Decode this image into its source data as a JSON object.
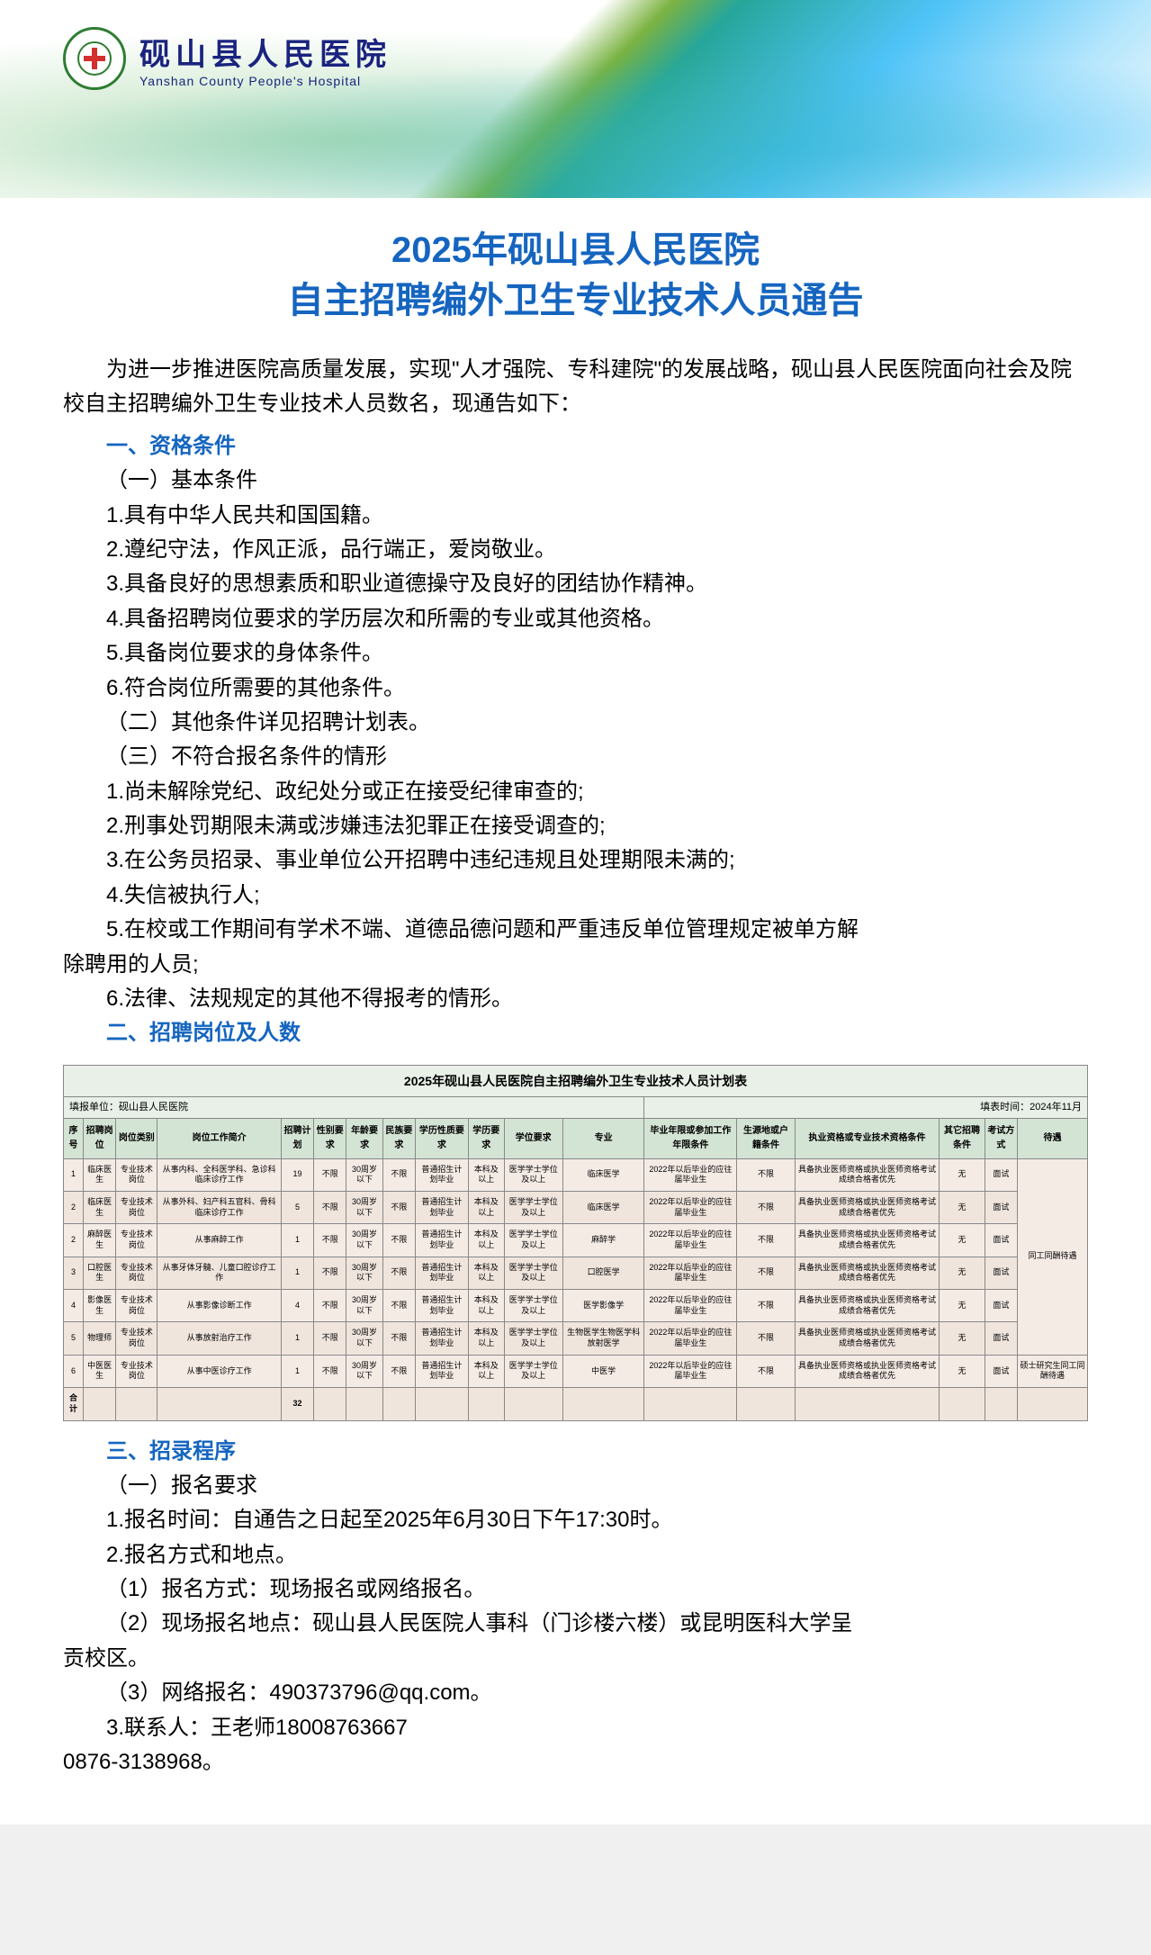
{
  "header": {
    "hospital_cn": "砚山县人民医院",
    "hospital_en": "Yanshan County People's Hospital"
  },
  "title": {
    "line1": "2025年砚山县人民医院",
    "line2": "自主招聘编外卫生专业技术人员通告"
  },
  "intro": "为进一步推进医院高质量发展，实现\"人才强院、专科建院\"的发展战略，砚山县人民医院面向社会及院校自主招聘编外卫生专业技术人员数名，现通告如下：",
  "s1": {
    "head": "一、资格条件",
    "sub1": "（一）基本条件",
    "i1": "1.具有中华人民共和国国籍。",
    "i2": "2.遵纪守法，作风正派，品行端正，爱岗敬业。",
    "i3": "3.具备良好的思想素质和职业道德操守及良好的团结协作精神。",
    "i4": "4.具备招聘岗位要求的学历层次和所需的专业或其他资格。",
    "i5": "5.具备岗位要求的身体条件。",
    "i6": "6.符合岗位所需要的其他条件。",
    "sub2": "（二）其他条件详见招聘计划表。",
    "sub3": "（三）不符合报名条件的情形",
    "d1": "1.尚未解除党纪、政纪处分或正在接受纪律审查的;",
    "d2": "2.刑事处罚期限未满或涉嫌违法犯罪正在接受调查的;",
    "d3": "3.在公务员招录、事业单位公开招聘中违纪违规且处理期限未满的;",
    "d4": "4.失信被执行人;",
    "d5a": "5.在校或工作期间有学术不端、道德品德问题和严重违反单位管理规定被单方解",
    "d5b": "除聘用的人员;",
    "d6": "6.法律、法规规定的其他不得报考的情形。"
  },
  "s2": {
    "head": "二、招聘岗位及人数"
  },
  "table": {
    "caption": "2025年砚山县人民医院自主招聘编外卫生专业技术人员计划表",
    "meta_left": "填报单位：砚山县人民医院",
    "meta_right": "填表时间：2024年11月",
    "headers": [
      "序号",
      "招聘岗位",
      "岗位类别",
      "岗位工作简介",
      "招聘计划",
      "性别要求",
      "年龄要求",
      "民族要求",
      "学历性质要求",
      "学历要求",
      "学位要求",
      "专业",
      "毕业年限或参加工作年限条件",
      "生源地或户籍条件",
      "执业资格或专业技术资格条件",
      "其它招聘条件",
      "考试方式",
      "待遇"
    ],
    "rows": [
      {
        "no": "1",
        "post": "临床医生",
        "cat": "专业技术岗位",
        "desc": "从事内科、全科医学科、急诊科临床诊疗工作",
        "plan": "19",
        "sex": "不限",
        "age": "30周岁以下",
        "eth": "不限",
        "edutype": "普通招生计划毕业",
        "edu": "本科及以上",
        "deg": "医学学士学位及以上",
        "major": "临床医学",
        "grad": "2022年以后毕业的应往届毕业生",
        "loc": "不限",
        "cert": "具备执业医师资格或执业医师资格考试成绩合格者优先",
        "other": "无",
        "exam": "面试"
      },
      {
        "no": "2",
        "post": "临床医生",
        "cat": "专业技术岗位",
        "desc": "从事外科、妇产科五官科、骨科临床诊疗工作",
        "plan": "5",
        "sex": "不限",
        "age": "30周岁以下",
        "eth": "不限",
        "edutype": "普通招生计划毕业",
        "edu": "本科及以上",
        "deg": "医学学士学位及以上",
        "major": "临床医学",
        "grad": "2022年以后毕业的应往届毕业生",
        "loc": "不限",
        "cert": "具备执业医师资格或执业医师资格考试成绩合格者优先",
        "other": "无",
        "exam": "面试"
      },
      {
        "no": "2",
        "post": "麻醉医生",
        "cat": "专业技术岗位",
        "desc": "从事麻醉工作",
        "plan": "1",
        "sex": "不限",
        "age": "30周岁以下",
        "eth": "不限",
        "edutype": "普通招生计划毕业",
        "edu": "本科及以上",
        "deg": "医学学士学位及以上",
        "major": "麻醉学",
        "grad": "2022年以后毕业的应往届毕业生",
        "loc": "不限",
        "cert": "具备执业医师资格或执业医师资格考试成绩合格者优先",
        "other": "无",
        "exam": "面试"
      },
      {
        "no": "3",
        "post": "口腔医生",
        "cat": "专业技术岗位",
        "desc": "从事牙体牙髓、儿童口腔诊疗工作",
        "plan": "1",
        "sex": "不限",
        "age": "30周岁以下",
        "eth": "不限",
        "edutype": "普通招生计划毕业",
        "edu": "本科及以上",
        "deg": "医学学士学位及以上",
        "major": "口腔医学",
        "grad": "2022年以后毕业的应往届毕业生",
        "loc": "不限",
        "cert": "具备执业医师资格或执业医师资格考试成绩合格者优先",
        "other": "无",
        "exam": "面试"
      },
      {
        "no": "4",
        "post": "影像医生",
        "cat": "专业技术岗位",
        "desc": "从事影像诊断工作",
        "plan": "4",
        "sex": "不限",
        "age": "30周岁以下",
        "eth": "不限",
        "edutype": "普通招生计划毕业",
        "edu": "本科及以上",
        "deg": "医学学士学位及以上",
        "major": "医学影像学",
        "grad": "2022年以后毕业的应往届毕业生",
        "loc": "不限",
        "cert": "具备执业医师资格或执业医师资格考试成绩合格者优先",
        "other": "无",
        "exam": "面试"
      },
      {
        "no": "5",
        "post": "物理师",
        "cat": "专业技术岗位",
        "desc": "从事放射治疗工作",
        "plan": "1",
        "sex": "不限",
        "age": "30周岁以下",
        "eth": "不限",
        "edutype": "普通招生计划毕业",
        "edu": "本科及以上",
        "deg": "医学学士学位及以上",
        "major": "生物医学生物医学科放射医学",
        "grad": "2022年以后毕业的应往届毕业生",
        "loc": "不限",
        "cert": "具备执业医师资格或执业医师资格考试成绩合格者优先",
        "other": "无",
        "exam": "面试"
      },
      {
        "no": "6",
        "post": "中医医生",
        "cat": "专业技术岗位",
        "desc": "从事中医诊疗工作",
        "plan": "1",
        "sex": "不限",
        "age": "30周岁以下",
        "eth": "不限",
        "edutype": "普通招生计划毕业",
        "edu": "本科及以上",
        "deg": "医学学士学位及以上",
        "major": "中医学",
        "grad": "2022年以后毕业的应往届毕业生",
        "loc": "不限",
        "cert": "具备执业医师资格或执业医师资格考试成绩合格者优先",
        "other": "无",
        "exam": "面试"
      }
    ],
    "treat_main": "同工同酬待遇",
    "treat_last": "硕士研究生同工同酬待遇",
    "sum_label": "合计",
    "sum_total": "32"
  },
  "s3": {
    "head": "三、招录程序",
    "sub1": "（一）报名要求",
    "i1": "1.报名时间：自通告之日起至2025年6月30日下午17:30时。",
    "i2": "2.报名方式和地点。",
    "p1": "（1）报名方式：现场报名或网络报名。",
    "p2a": "（2）现场报名地点：砚山县人民医院人事科（门诊楼六楼）或昆明医科大学呈",
    "p2b": "贡校区。",
    "p3": "（3）网络报名：490373796@qq.com。",
    "i3": "3.联系人：王老师18008763667",
    "phone": "0876-3138968。"
  },
  "colors": {
    "heading": "#1565c0",
    "text": "#000000",
    "table_header_bg": "#d4e4d4",
    "table_cell_bg": "#f5ebe5",
    "table_meta_bg": "#e8f0e8"
  }
}
